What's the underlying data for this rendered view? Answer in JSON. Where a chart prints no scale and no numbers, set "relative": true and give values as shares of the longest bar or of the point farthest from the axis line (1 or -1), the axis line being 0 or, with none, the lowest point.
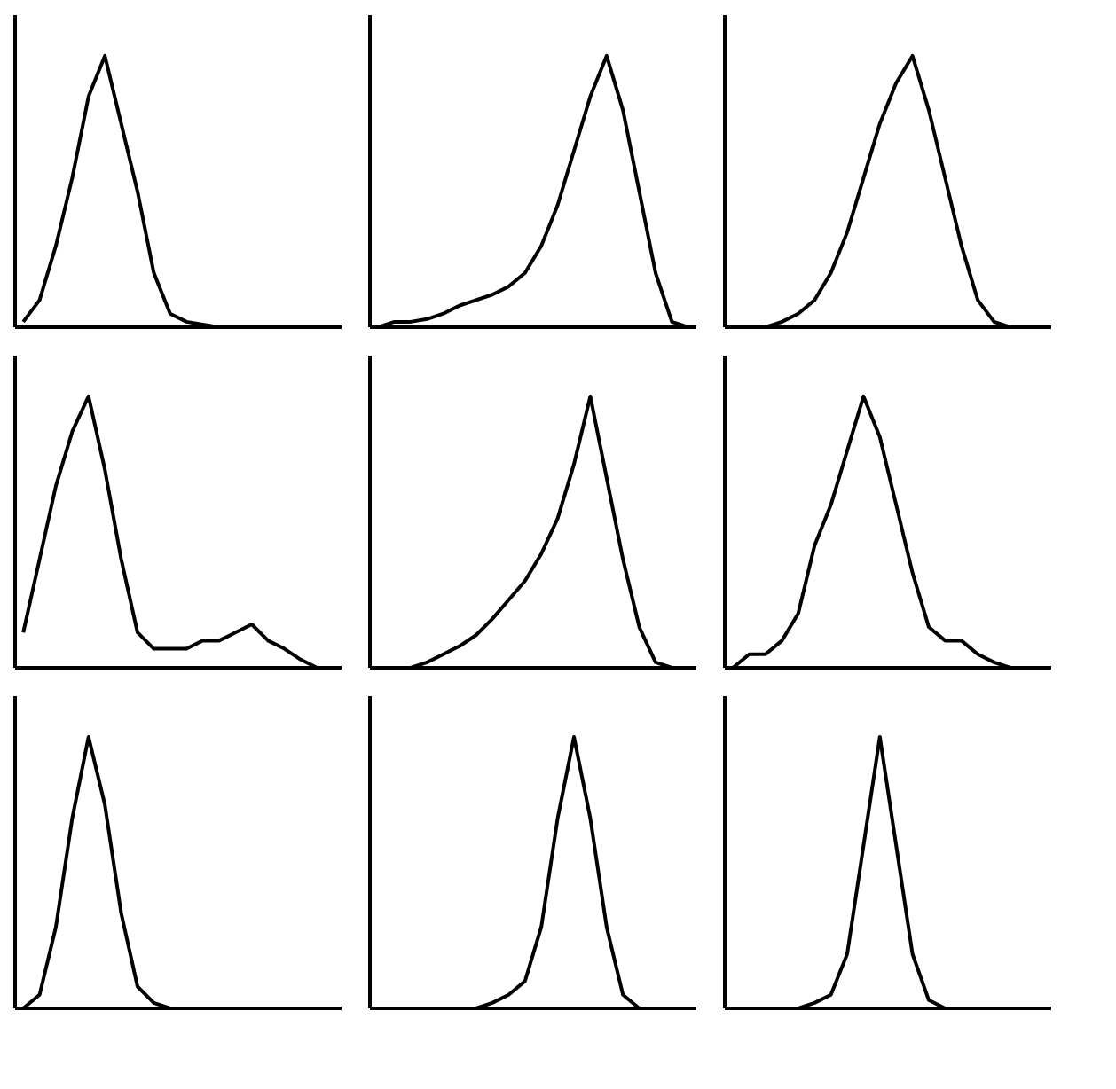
{
  "chart_data": [
    {
      "type": "line",
      "relative": true,
      "categories": [
        null,
        null,
        null,
        null,
        null,
        null,
        null,
        null,
        null,
        null,
        null,
        null,
        null,
        null,
        null,
        null,
        null,
        null,
        null,
        null
      ],
      "series": [
        {
          "color": "#000000",
          "values": [
            0.02,
            0.1,
            0.3,
            0.55,
            0.85,
            1.0,
            0.75,
            0.5,
            0.2,
            0.05,
            0.02,
            0.01,
            0,
            0,
            0,
            0,
            0,
            0,
            0,
            0
          ]
        }
      ],
      "grid": false
    },
    {
      "type": "line",
      "relative": true,
      "categories": [
        null,
        null,
        null,
        null,
        null,
        null,
        null,
        null,
        null,
        null,
        null,
        null,
        null,
        null,
        null,
        null,
        null,
        null,
        null,
        null
      ],
      "series": [
        {
          "color": "#000000",
          "values": [
            0,
            0.02,
            0.02,
            0.03,
            0.05,
            0.08,
            0.1,
            0.12,
            0.15,
            0.2,
            0.3,
            0.45,
            0.65,
            0.85,
            1.0,
            0.8,
            0.5,
            0.2,
            0.02,
            0
          ]
        }
      ],
      "grid": false
    },
    {
      "type": "line",
      "relative": true,
      "categories": [
        null,
        null,
        null,
        null,
        null,
        null,
        null,
        null,
        null,
        null,
        null,
        null,
        null,
        null,
        null,
        null,
        null,
        null,
        null,
        null
      ],
      "series": [
        {
          "color": "#000000",
          "values": [
            0,
            0,
            0,
            0.02,
            0.05,
            0.1,
            0.2,
            0.35,
            0.55,
            0.75,
            0.9,
            1.0,
            0.8,
            0.55,
            0.3,
            0.1,
            0.02,
            0,
            0,
            0
          ]
        }
      ],
      "grid": false
    },
    {
      "type": "line",
      "relative": true,
      "categories": [
        null,
        null,
        null,
        null,
        null,
        null,
        null,
        null,
        null,
        null,
        null,
        null,
        null,
        null,
        null,
        null,
        null,
        null,
        null,
        null
      ],
      "series": [
        {
          "color": "#000000",
          "values": [
            0.13,
            0.4,
            0.67,
            0.87,
            1.0,
            0.73,
            0.4,
            0.13,
            0.07,
            0.07,
            0.07,
            0.1,
            0.1,
            0.13,
            0.16,
            0.1,
            0.07,
            0.03,
            0,
            0
          ]
        }
      ],
      "grid": false
    },
    {
      "type": "line",
      "relative": true,
      "categories": [
        null,
        null,
        null,
        null,
        null,
        null,
        null,
        null,
        null,
        null,
        null,
        null,
        null,
        null,
        null,
        null,
        null,
        null,
        null,
        null
      ],
      "series": [
        {
          "color": "#000000",
          "values": [
            0,
            0,
            0,
            0.02,
            0.05,
            0.08,
            0.12,
            0.18,
            0.25,
            0.32,
            0.42,
            0.55,
            0.75,
            1.0,
            0.7,
            0.4,
            0.15,
            0.02,
            0,
            0
          ]
        }
      ],
      "grid": false
    },
    {
      "type": "line",
      "relative": true,
      "categories": [
        null,
        null,
        null,
        null,
        null,
        null,
        null,
        null,
        null,
        null,
        null,
        null,
        null,
        null,
        null,
        null,
        null,
        null,
        null,
        null
      ],
      "series": [
        {
          "color": "#000000",
          "values": [
            0,
            0.05,
            0.05,
            0.1,
            0.2,
            0.45,
            0.6,
            0.8,
            1.0,
            0.85,
            0.6,
            0.35,
            0.15,
            0.1,
            0.1,
            0.05,
            0.02,
            0,
            0,
            0
          ]
        }
      ],
      "grid": false
    },
    {
      "type": "line",
      "relative": true,
      "categories": [
        null,
        null,
        null,
        null,
        null,
        null,
        null,
        null,
        null,
        null,
        null,
        null,
        null,
        null,
        null,
        null,
        null,
        null,
        null,
        null
      ],
      "series": [
        {
          "color": "#000000",
          "values": [
            0,
            0.05,
            0.3,
            0.7,
            1.0,
            0.75,
            0.35,
            0.08,
            0.02,
            0,
            0,
            0,
            0,
            0,
            0,
            0,
            0,
            0,
            0,
            0
          ]
        }
      ],
      "grid": false
    },
    {
      "type": "line",
      "relative": true,
      "categories": [
        null,
        null,
        null,
        null,
        null,
        null,
        null,
        null,
        null,
        null,
        null,
        null,
        null,
        null,
        null,
        null,
        null,
        null,
        null,
        null
      ],
      "series": [
        {
          "color": "#000000",
          "values": [
            0,
            0,
            0,
            0,
            0,
            0,
            0,
            0.02,
            0.05,
            0.1,
            0.3,
            0.7,
            1.0,
            0.7,
            0.3,
            0.05,
            0,
            0,
            0,
            0
          ]
        }
      ],
      "grid": false
    },
    {
      "type": "line",
      "relative": true,
      "categories": [
        null,
        null,
        null,
        null,
        null,
        null,
        null,
        null,
        null,
        null,
        null,
        null,
        null,
        null,
        null,
        null,
        null,
        null,
        null,
        null
      ],
      "series": [
        {
          "color": "#000000",
          "values": [
            0,
            0,
            0,
            0,
            0,
            0.02,
            0.05,
            0.2,
            0.6,
            1.0,
            0.6,
            0.2,
            0.03,
            0,
            0,
            0,
            0,
            0,
            0,
            0
          ]
        }
      ],
      "grid": false
    }
  ]
}
